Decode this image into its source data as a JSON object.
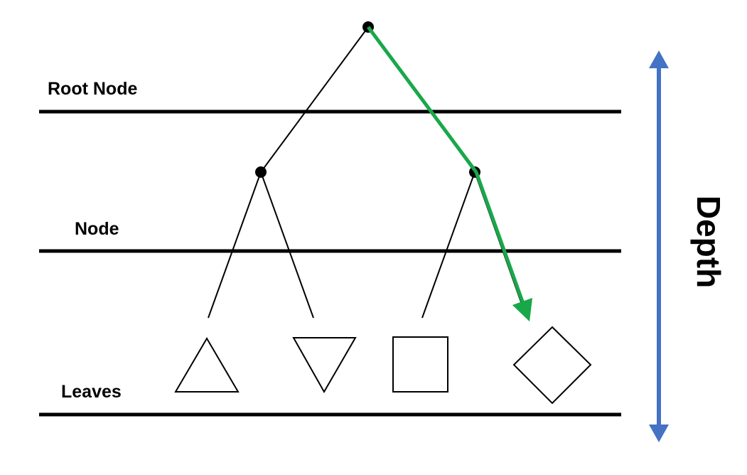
{
  "labels": {
    "root": "Root Node",
    "node": "Node",
    "leaves": "Leaves",
    "axis": "Depth"
  },
  "colors": {
    "path": "#18a84a",
    "axis": "#4472c4",
    "ink": "#000000"
  },
  "leaf_shapes": [
    "triangle",
    "inverted-triangle",
    "square",
    "diamond"
  ]
}
